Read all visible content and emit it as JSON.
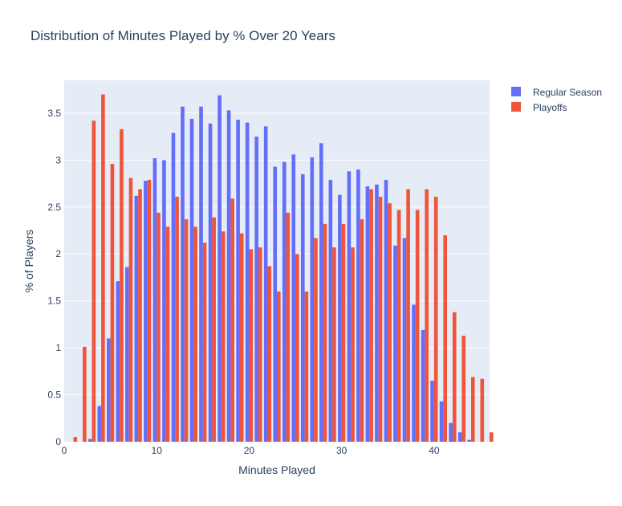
{
  "chart_data": {
    "type": "bar",
    "title": "Distribution of Minutes Played by % Over 20 Years",
    "xlabel": "Minutes Played",
    "ylabel": "% of Players",
    "xlim": [
      0,
      46
    ],
    "ylim": [
      0,
      3.85
    ],
    "x_ticks": [
      0,
      10,
      20,
      30,
      40
    ],
    "x_tick_labels": [
      "0",
      "10",
      "20",
      "30",
      "40"
    ],
    "y_ticks": [
      0,
      0.5,
      1,
      1.5,
      2,
      2.5,
      3,
      3.5
    ],
    "y_tick_labels": [
      "0",
      "0.5",
      "1",
      "1.5",
      "2",
      "2.5",
      "3",
      "3.5"
    ],
    "grid": true,
    "legend_position": "top-right",
    "background_color": "#e5ecf6",
    "x": [
      1,
      2,
      3,
      4,
      5,
      6,
      7,
      8,
      9,
      10,
      11,
      12,
      13,
      14,
      15,
      16,
      17,
      18,
      19,
      20,
      21,
      22,
      23,
      24,
      25,
      26,
      27,
      28,
      29,
      30,
      31,
      32,
      33,
      34,
      35,
      36,
      37,
      38,
      39,
      40,
      41,
      42,
      43,
      44,
      45,
      46
    ],
    "series": [
      {
        "name": "Regular Season",
        "color": "#636efa",
        "values": [
          0.0,
          0.0,
          0.03,
          0.38,
          1.1,
          1.71,
          1.86,
          2.62,
          2.78,
          3.02,
          3.0,
          3.29,
          3.57,
          3.44,
          3.57,
          3.39,
          3.69,
          3.53,
          3.43,
          3.4,
          3.25,
          3.36,
          2.93,
          2.98,
          3.06,
          2.85,
          3.03,
          3.18,
          2.79,
          2.63,
          2.88,
          2.9,
          2.72,
          2.74,
          2.79,
          2.09,
          2.17,
          1.46,
          1.19,
          0.65,
          0.43,
          0.2,
          0.1,
          0.02,
          0.0,
          0.0
        ]
      },
      {
        "name": "Playoffs",
        "color": "#ef553b",
        "values": [
          0.05,
          1.01,
          3.42,
          3.7,
          2.96,
          3.33,
          2.81,
          2.69,
          2.79,
          2.44,
          2.29,
          2.61,
          2.37,
          2.29,
          2.12,
          2.39,
          2.24,
          2.59,
          2.22,
          2.05,
          2.07,
          1.87,
          1.6,
          2.44,
          2.0,
          1.6,
          2.17,
          2.32,
          2.07,
          2.32,
          2.07,
          2.37,
          2.69,
          2.61,
          2.54,
          2.47,
          2.69,
          2.47,
          2.69,
          2.61,
          2.2,
          1.38,
          1.13,
          0.69,
          0.67,
          0.1
        ]
      }
    ]
  }
}
